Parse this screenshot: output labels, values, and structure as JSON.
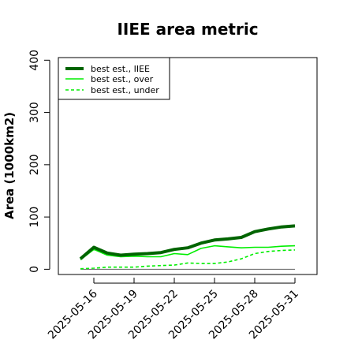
{
  "chart_data": {
    "type": "line",
    "title": "IIEE area metric",
    "xlabel": "",
    "ylabel": "Area (1000km2)",
    "x_tick_labels": [
      "2025-05-16",
      "2025-05-19",
      "2025-05-22",
      "2025-05-25",
      "2025-05-28",
      "2025-05-31"
    ],
    "y_ticks": [
      0,
      100,
      200,
      300,
      400
    ],
    "ylim": [
      -10,
      405
    ],
    "x": [
      "2025-05-15",
      "2025-05-16",
      "2025-05-17",
      "2025-05-18",
      "2025-05-19",
      "2025-05-20",
      "2025-05-21",
      "2025-05-22",
      "2025-05-23",
      "2025-05-24",
      "2025-05-25",
      "2025-05-26",
      "2025-05-27",
      "2025-05-28",
      "2025-05-29",
      "2025-05-30",
      "2025-05-31"
    ],
    "grid": false,
    "legend_position": "top-left",
    "reference_line": 0,
    "series": [
      {
        "name": "best est., IIEE",
        "color": "#006400",
        "style": "solid",
        "values": [
          20,
          42,
          31,
          27,
          29,
          30,
          32,
          38,
          41,
          50,
          56,
          58,
          61,
          72,
          77,
          81,
          83
        ]
      },
      {
        "name": "best est., over",
        "color": "#00ee00",
        "style": "solid",
        "values": [
          18,
          38,
          27,
          24,
          25,
          24,
          24,
          30,
          28,
          40,
          45,
          43,
          41,
          42,
          42,
          44,
          45
        ]
      },
      {
        "name": "best est., under",
        "color": "#00ee00",
        "style": "dashed",
        "values": [
          1,
          2,
          4,
          4,
          4,
          6,
          7,
          8,
          12,
          11,
          11,
          14,
          20,
          30,
          34,
          36,
          37
        ]
      }
    ]
  }
}
